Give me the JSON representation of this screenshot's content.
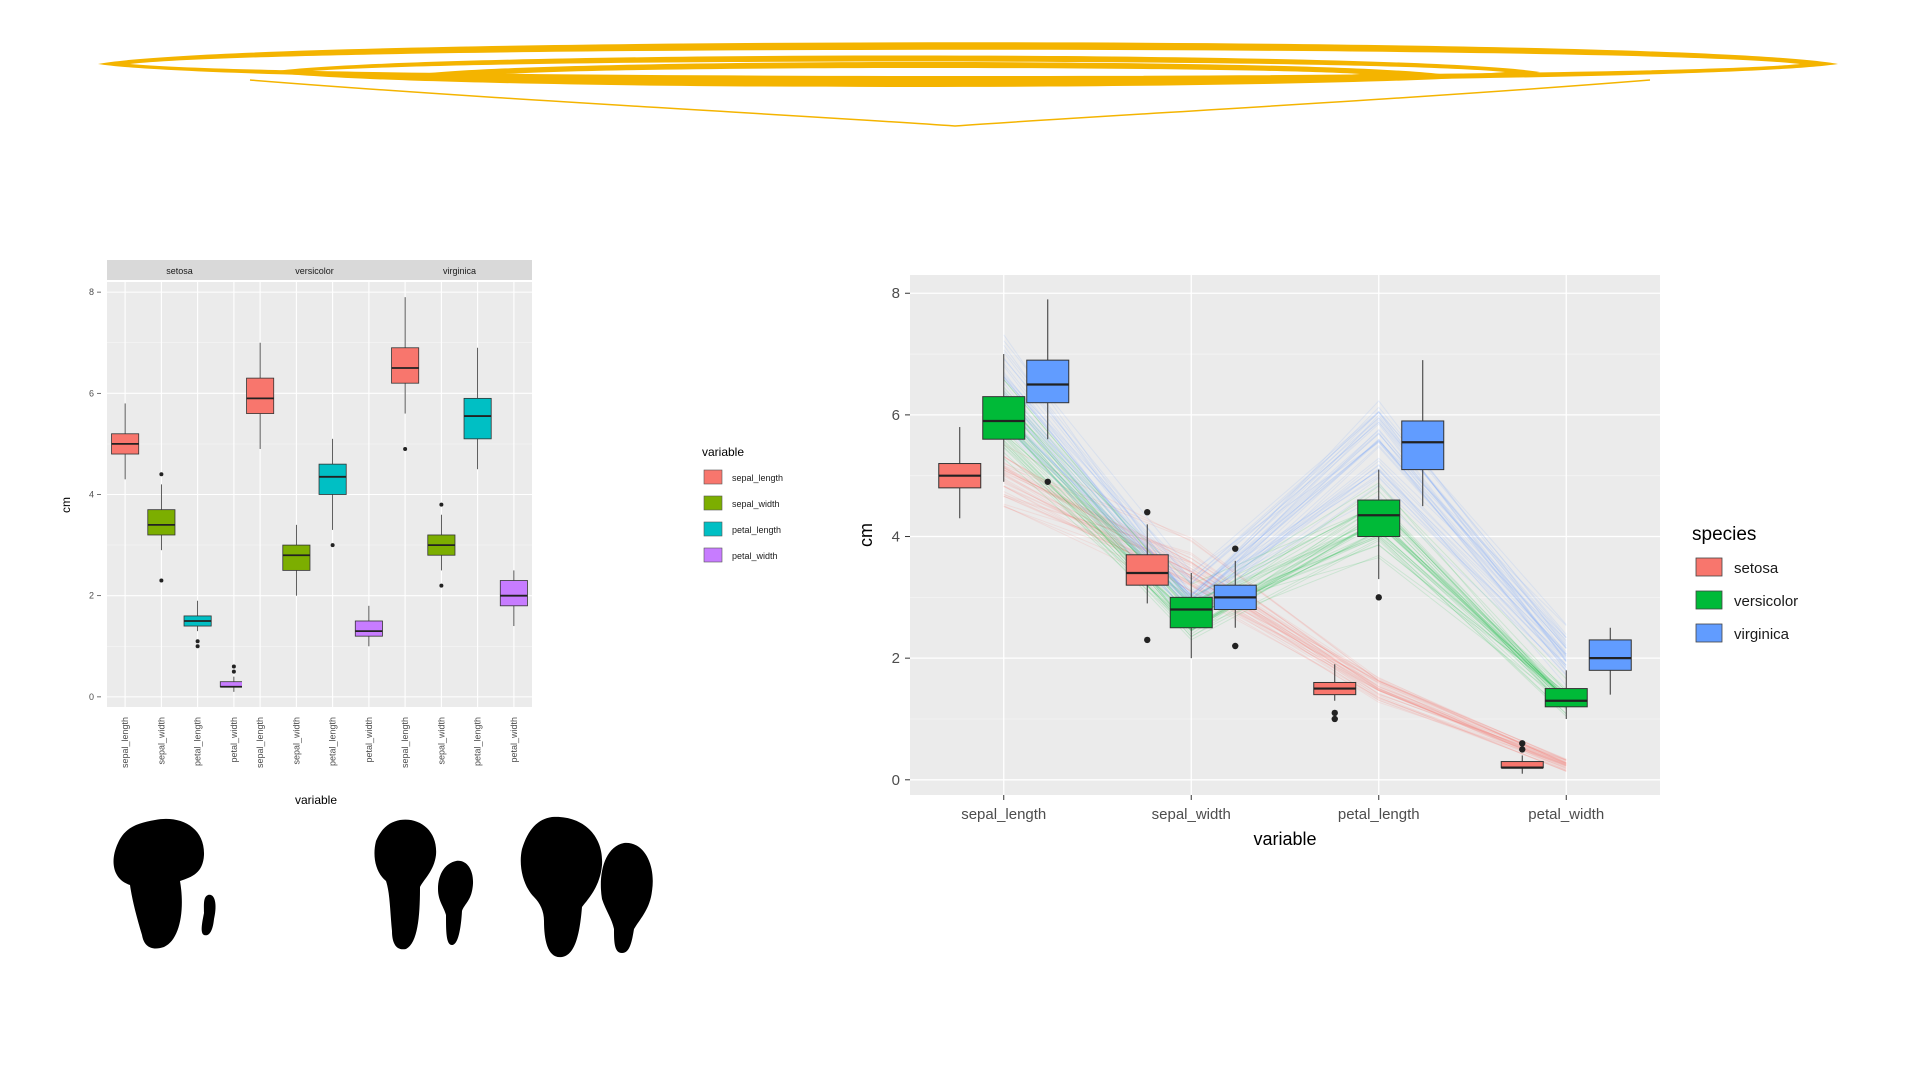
{
  "chart_data": [
    {
      "type": "boxplot",
      "facets": [
        "setosa",
        "versicolor",
        "virginica"
      ],
      "categories": [
        "sepal_length",
        "sepal_width",
        "petal_length",
        "petal_width"
      ],
      "xlabel": "variable",
      "ylabel": "cm",
      "ylim": [
        -0.2,
        8.2
      ],
      "yticks": [
        0,
        2,
        4,
        6,
        8
      ],
      "legend": {
        "title": "variable",
        "position": "right",
        "items": [
          "sepal_length",
          "sepal_width",
          "petal_length",
          "petal_width"
        ]
      },
      "colors": [
        "#F8766D",
        "#7CAE00",
        "#00BFC4",
        "#C77CFF"
      ],
      "boxes": {
        "setosa": [
          {
            "min": 4.3,
            "q1": 4.8,
            "median": 5.0,
            "q3": 5.2,
            "max": 5.8,
            "outliers": []
          },
          {
            "min": 2.9,
            "q1": 3.2,
            "median": 3.4,
            "q3": 3.7,
            "max": 4.2,
            "outliers": [
              2.3,
              4.4
            ]
          },
          {
            "min": 1.3,
            "q1": 1.4,
            "median": 1.5,
            "q3": 1.6,
            "max": 1.9,
            "outliers": [
              1.0,
              1.1
            ]
          },
          {
            "min": 0.1,
            "q1": 0.2,
            "median": 0.2,
            "q3": 0.3,
            "max": 0.4,
            "outliers": [
              0.5,
              0.6
            ]
          }
        ],
        "versicolor": [
          {
            "min": 4.9,
            "q1": 5.6,
            "median": 5.9,
            "q3": 6.3,
            "max": 7.0,
            "outliers": []
          },
          {
            "min": 2.0,
            "q1": 2.5,
            "median": 2.8,
            "q3": 3.0,
            "max": 3.4,
            "outliers": []
          },
          {
            "min": 3.3,
            "q1": 4.0,
            "median": 4.35,
            "q3": 4.6,
            "max": 5.1,
            "outliers": [
              3.0
            ]
          },
          {
            "min": 1.0,
            "q1": 1.2,
            "median": 1.3,
            "q3": 1.5,
            "max": 1.8,
            "outliers": []
          }
        ],
        "virginica": [
          {
            "min": 5.6,
            "q1": 6.2,
            "median": 6.5,
            "q3": 6.9,
            "max": 7.9,
            "outliers": [
              4.9
            ]
          },
          {
            "min": 2.5,
            "q1": 2.8,
            "median": 3.0,
            "q3": 3.2,
            "max": 3.6,
            "outliers": [
              2.2,
              3.8
            ]
          },
          {
            "min": 4.5,
            "q1": 5.1,
            "median": 5.55,
            "q3": 5.9,
            "max": 6.9,
            "outliers": []
          },
          {
            "min": 1.4,
            "q1": 1.8,
            "median": 2.0,
            "q3": 2.3,
            "max": 2.5,
            "outliers": []
          }
        ]
      }
    },
    {
      "type": "boxplot",
      "categories": [
        "sepal_length",
        "sepal_width",
        "petal_length",
        "petal_width"
      ],
      "xlabel": "variable",
      "ylabel": "cm",
      "ylim": [
        -0.25,
        8.3
      ],
      "yticks": [
        0,
        2,
        4,
        6,
        8
      ],
      "legend": {
        "title": "species",
        "position": "right",
        "items": [
          "setosa",
          "versicolor",
          "virginica"
        ]
      },
      "colors": [
        "#F8766D",
        "#00BA38",
        "#619CFF"
      ],
      "parallel_lines": true,
      "series": [
        {
          "name": "setosa",
          "boxes": [
            {
              "min": 4.3,
              "q1": 4.8,
              "median": 5.0,
              "q3": 5.2,
              "max": 5.8,
              "outliers": []
            },
            {
              "min": 2.9,
              "q1": 3.2,
              "median": 3.4,
              "q3": 3.7,
              "max": 4.2,
              "outliers": [
                2.3,
                4.4
              ]
            },
            {
              "min": 1.3,
              "q1": 1.4,
              "median": 1.5,
              "q3": 1.6,
              "max": 1.9,
              "outliers": [
                1.0,
                1.1
              ]
            },
            {
              "min": 0.1,
              "q1": 0.2,
              "median": 0.2,
              "q3": 0.3,
              "max": 0.4,
              "outliers": [
                0.5,
                0.6
              ]
            }
          ]
        },
        {
          "name": "versicolor",
          "boxes": [
            {
              "min": 4.9,
              "q1": 5.6,
              "median": 5.9,
              "q3": 6.3,
              "max": 7.0,
              "outliers": []
            },
            {
              "min": 2.0,
              "q1": 2.5,
              "median": 2.8,
              "q3": 3.0,
              "max": 3.4,
              "outliers": []
            },
            {
              "min": 3.3,
              "q1": 4.0,
              "median": 4.35,
              "q3": 4.6,
              "max": 5.1,
              "outliers": [
                3.0
              ]
            },
            {
              "min": 1.0,
              "q1": 1.2,
              "median": 1.3,
              "q3": 1.5,
              "max": 1.8,
              "outliers": []
            }
          ]
        },
        {
          "name": "virginica",
          "boxes": [
            {
              "min": 5.6,
              "q1": 6.2,
              "median": 6.5,
              "q3": 6.9,
              "max": 7.9,
              "outliers": [
                4.9
              ]
            },
            {
              "min": 2.5,
              "q1": 2.8,
              "median": 3.0,
              "q3": 3.2,
              "max": 3.6,
              "outliers": [
                2.2,
                3.8
              ]
            },
            {
              "min": 4.5,
              "q1": 5.1,
              "median": 5.55,
              "q3": 5.9,
              "max": 6.9,
              "outliers": []
            },
            {
              "min": 1.4,
              "q1": 1.8,
              "median": 2.0,
              "q3": 2.3,
              "max": 2.5,
              "outliers": []
            }
          ]
        }
      ]
    }
  ],
  "decoration": {
    "banner_color": "#F4B400",
    "silhouette_color": "#000000"
  }
}
